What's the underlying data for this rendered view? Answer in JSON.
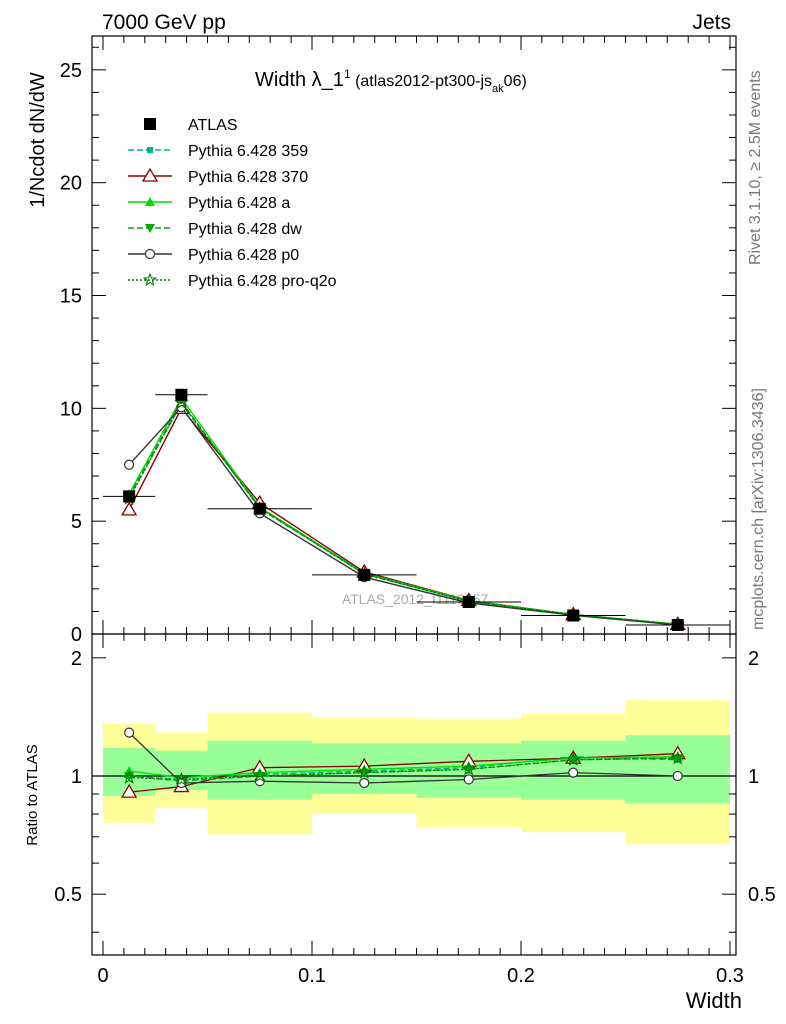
{
  "header": {
    "left": "7000 GeV pp",
    "right": "Jets"
  },
  "side_labels": {
    "top": "Rivet 3.1.10, ≥ 2.5M events",
    "bottom": "mcplots.cern.ch [arXiv:1306.3436]"
  },
  "watermark": "ATLAS_2012_I1119557",
  "chart_data": {
    "type": "line",
    "title": {
      "main": "Width λ_1",
      "sup": "1",
      "paren_open": " (atlas2012-pt300-js",
      "sub": "ak",
      "paren_close": "06)"
    },
    "ylabel": "1/Ncdot dN/dW",
    "ratio_ylabel": "Ratio to ATLAS",
    "xlabel": "Width",
    "xlim": [
      0,
      0.3
    ],
    "ylim": [
      0,
      26.5
    ],
    "ratio_ylim": [
      0.35,
      2.3
    ],
    "ratio_scale": "log",
    "x_ticks": [
      "0",
      "0.1",
      "0.2",
      "0.3"
    ],
    "y_ticks": [
      "0",
      "5",
      "10",
      "15",
      "20",
      "25"
    ],
    "ratio_ticks": [
      "0.5",
      "1",
      "2"
    ],
    "bins": [
      [
        0,
        0.025
      ],
      [
        0.025,
        0.05
      ],
      [
        0.05,
        0.1
      ],
      [
        0.1,
        0.15
      ],
      [
        0.15,
        0.2
      ],
      [
        0.2,
        0.25
      ],
      [
        0.25,
        0.3
      ]
    ],
    "x": [
      0.0125,
      0.0375,
      0.075,
      0.125,
      0.175,
      0.225,
      0.275
    ],
    "data": {
      "name": "ATLAS",
      "values": [
        6.1,
        10.6,
        5.55,
        2.62,
        1.42,
        0.82,
        0.4
      ]
    },
    "series": [
      {
        "name": "Pythia 6.428 359",
        "color": "#00b386",
        "dash": "6,3",
        "marker": "square-small",
        "values": [
          6.05,
          10.2,
          5.6,
          2.65,
          1.45,
          0.85,
          0.42
        ]
      },
      {
        "name": "Pythia 6.428 370",
        "color": "#8b0000",
        "dash": "",
        "marker": "triangle-open",
        "values": [
          5.5,
          10.0,
          5.8,
          2.75,
          1.48,
          0.86,
          0.43
        ]
      },
      {
        "name": "Pythia 6.428 a",
        "color": "#00dd00",
        "dash": "",
        "marker": "triangle-up",
        "values": [
          6.2,
          10.45,
          5.62,
          2.7,
          1.47,
          0.87,
          0.43
        ]
      },
      {
        "name": "Pythia 6.428 dw",
        "color": "#00aa00",
        "dash": "6,3",
        "marker": "triangle-down",
        "values": [
          6.1,
          10.3,
          5.55,
          2.68,
          1.45,
          0.86,
          0.43
        ]
      },
      {
        "name": "Pythia 6.428 p0",
        "color": "#333333",
        "dash": "",
        "marker": "circle-open",
        "values": [
          7.5,
          10.05,
          5.35,
          2.52,
          1.38,
          0.83,
          0.4
        ]
      },
      {
        "name": "Pythia 6.428 pro-q2o",
        "color": "#007700",
        "dash": "2,2",
        "marker": "star-open",
        "values": [
          6.0,
          10.25,
          5.58,
          2.66,
          1.44,
          0.86,
          0.42
        ]
      }
    ],
    "ratio_series": [
      {
        "values": [
          1.0,
          0.98,
          1.01,
          1.03,
          1.05,
          1.12,
          1.1
        ]
      },
      {
        "values": [
          0.91,
          0.94,
          1.05,
          1.06,
          1.09,
          1.11,
          1.14
        ]
      },
      {
        "values": [
          1.03,
          0.99,
          1.02,
          1.04,
          1.06,
          1.11,
          1.12
        ]
      },
      {
        "values": [
          1.0,
          0.97,
          1.0,
          1.02,
          1.04,
          1.1,
          1.11
        ]
      },
      {
        "values": [
          1.29,
          0.96,
          0.97,
          0.96,
          0.98,
          1.02,
          1.0
        ]
      },
      {
        "values": [
          0.99,
          0.98,
          1.0,
          1.02,
          1.04,
          1.1,
          1.11
        ]
      }
    ],
    "bands": {
      "yellow": [
        [
          0.76,
          1.36
        ],
        [
          0.83,
          1.29
        ],
        [
          0.71,
          1.45
        ],
        [
          0.8,
          1.41
        ],
        [
          0.74,
          1.4
        ],
        [
          0.72,
          1.44
        ],
        [
          0.67,
          1.56
        ]
      ],
      "green": [
        [
          0.89,
          1.18
        ],
        [
          0.92,
          1.16
        ],
        [
          0.87,
          1.23
        ],
        [
          0.9,
          1.21
        ],
        [
          0.88,
          1.21
        ],
        [
          0.87,
          1.23
        ],
        [
          0.85,
          1.27
        ]
      ]
    },
    "band_colors": {
      "yellow": "#ffff99",
      "green": "#99ff99"
    }
  }
}
